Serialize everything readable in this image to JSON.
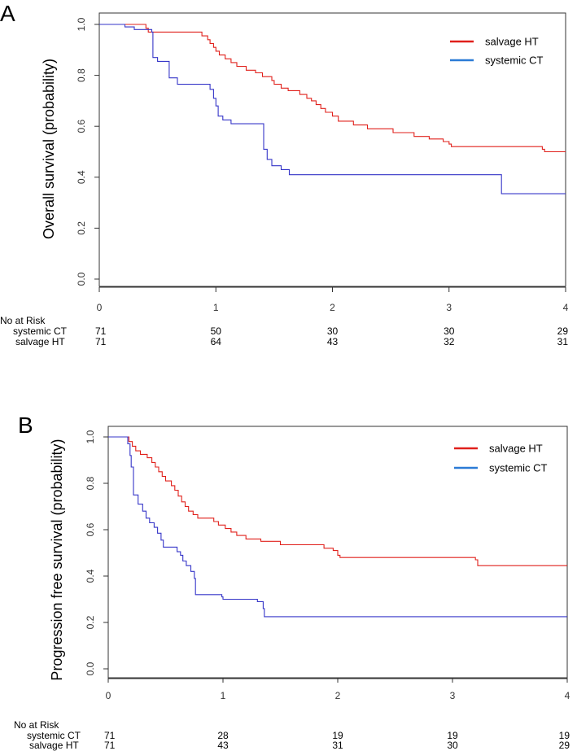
{
  "chart_data": [
    {
      "panel": "A",
      "type": "line",
      "ylabel": "Overall survival (probability)",
      "xlim": [
        0,
        4
      ],
      "ylim": [
        0,
        1
      ],
      "x_ticks": [
        0,
        1,
        2,
        3,
        4
      ],
      "y_ticks": [
        "0.0",
        "0.2",
        "0.4",
        "0.6",
        "0.8",
        "1.0"
      ],
      "legend": [
        {
          "name": "salvage HT",
          "color": "#e0201b"
        },
        {
          "name": "systemic CT",
          "color": "#2b7bd6"
        }
      ],
      "series": [
        {
          "name": "salvage HT",
          "color": "#e0201b",
          "points": [
            [
              0,
              1.0
            ],
            [
              0.38,
              1.0
            ],
            [
              0.4,
              0.985
            ],
            [
              0.42,
              0.97
            ],
            [
              0.86,
              0.97
            ],
            [
              0.88,
              0.955
            ],
            [
              0.93,
              0.94
            ],
            [
              0.95,
              0.925
            ],
            [
              0.98,
              0.91
            ],
            [
              1.0,
              0.895
            ],
            [
              1.03,
              0.88
            ],
            [
              1.08,
              0.865
            ],
            [
              1.13,
              0.85
            ],
            [
              1.18,
              0.835
            ],
            [
              1.26,
              0.82
            ],
            [
              1.34,
              0.81
            ],
            [
              1.4,
              0.795
            ],
            [
              1.48,
              0.78
            ],
            [
              1.5,
              0.765
            ],
            [
              1.56,
              0.75
            ],
            [
              1.62,
              0.74
            ],
            [
              1.72,
              0.725
            ],
            [
              1.78,
              0.71
            ],
            [
              1.82,
              0.7
            ],
            [
              1.86,
              0.685
            ],
            [
              1.9,
              0.67
            ],
            [
              1.94,
              0.655
            ],
            [
              2.0,
              0.64
            ],
            [
              2.05,
              0.62
            ],
            [
              2.18,
              0.605
            ],
            [
              2.3,
              0.59
            ],
            [
              2.52,
              0.575
            ],
            [
              2.7,
              0.56
            ],
            [
              2.83,
              0.55
            ],
            [
              2.95,
              0.54
            ],
            [
              3.0,
              0.53
            ],
            [
              3.02,
              0.52
            ],
            [
              3.8,
              0.51
            ],
            [
              3.82,
              0.5
            ],
            [
              4.0,
              0.5
            ]
          ]
        },
        {
          "name": "systemic CT",
          "color": "#3535c8",
          "points": [
            [
              0,
              1.0
            ],
            [
              0.22,
              0.99
            ],
            [
              0.3,
              0.98
            ],
            [
              0.45,
              0.97
            ],
            [
              0.46,
              0.87
            ],
            [
              0.5,
              0.855
            ],
            [
              0.6,
              0.79
            ],
            [
              0.67,
              0.765
            ],
            [
              0.95,
              0.745
            ],
            [
              0.98,
              0.71
            ],
            [
              1.0,
              0.68
            ],
            [
              1.02,
              0.64
            ],
            [
              1.06,
              0.625
            ],
            [
              1.13,
              0.61
            ],
            [
              1.4,
              0.61
            ],
            [
              1.41,
              0.51
            ],
            [
              1.44,
              0.47
            ],
            [
              1.48,
              0.445
            ],
            [
              1.56,
              0.43
            ],
            [
              1.63,
              0.41
            ],
            [
              3.44,
              0.41
            ],
            [
              3.45,
              0.335
            ],
            [
              4.0,
              0.335
            ]
          ]
        }
      ],
      "risk_table": {
        "title": "No at Risk",
        "rows": [
          {
            "label": "systemic CT",
            "counts": [
              "71",
              "50",
              "30",
              "30",
              "29"
            ]
          },
          {
            "label": "salvage HT",
            "counts": [
              "71",
              "64",
              "43",
              "32",
              "31"
            ]
          }
        ]
      }
    },
    {
      "panel": "B",
      "type": "line",
      "ylabel": "Progression free survival (probability)",
      "xlim": [
        0,
        4
      ],
      "ylim": [
        0,
        1
      ],
      "x_ticks": [
        0,
        1,
        2,
        3,
        4
      ],
      "y_ticks": [
        "0.0",
        "0.2",
        "0.4",
        "0.6",
        "0.8",
        "1.0"
      ],
      "legend": [
        {
          "name": "salvage HT",
          "color": "#e0201b"
        },
        {
          "name": "systemic CT",
          "color": "#2b7bd6"
        }
      ],
      "series": [
        {
          "name": "salvage HT",
          "color": "#e0201b",
          "points": [
            [
              0,
              1.0
            ],
            [
              0.16,
              1.0
            ],
            [
              0.18,
              0.98
            ],
            [
              0.21,
              0.96
            ],
            [
              0.24,
              0.94
            ],
            [
              0.28,
              0.925
            ],
            [
              0.34,
              0.91
            ],
            [
              0.38,
              0.89
            ],
            [
              0.41,
              0.87
            ],
            [
              0.44,
              0.85
            ],
            [
              0.47,
              0.83
            ],
            [
              0.5,
              0.81
            ],
            [
              0.55,
              0.79
            ],
            [
              0.58,
              0.77
            ],
            [
              0.61,
              0.745
            ],
            [
              0.64,
              0.72
            ],
            [
              0.67,
              0.7
            ],
            [
              0.7,
              0.68
            ],
            [
              0.74,
              0.665
            ],
            [
              0.78,
              0.65
            ],
            [
              0.92,
              0.635
            ],
            [
              0.96,
              0.62
            ],
            [
              1.02,
              0.605
            ],
            [
              1.07,
              0.59
            ],
            [
              1.12,
              0.575
            ],
            [
              1.2,
              0.56
            ],
            [
              1.33,
              0.55
            ],
            [
              1.5,
              0.535
            ],
            [
              1.88,
              0.52
            ],
            [
              1.96,
              0.51
            ],
            [
              2.0,
              0.49
            ],
            [
              2.02,
              0.48
            ],
            [
              3.2,
              0.47
            ],
            [
              3.22,
              0.445
            ],
            [
              4.0,
              0.445
            ]
          ]
        },
        {
          "name": "systemic CT",
          "color": "#3535c8",
          "points": [
            [
              0,
              1.0
            ],
            [
              0.15,
              1.0
            ],
            [
              0.17,
              0.97
            ],
            [
              0.19,
              0.92
            ],
            [
              0.2,
              0.87
            ],
            [
              0.22,
              0.75
            ],
            [
              0.26,
              0.71
            ],
            [
              0.3,
              0.68
            ],
            [
              0.33,
              0.65
            ],
            [
              0.36,
              0.63
            ],
            [
              0.4,
              0.61
            ],
            [
              0.43,
              0.585
            ],
            [
              0.46,
              0.555
            ],
            [
              0.48,
              0.525
            ],
            [
              0.6,
              0.505
            ],
            [
              0.63,
              0.49
            ],
            [
              0.65,
              0.465
            ],
            [
              0.68,
              0.445
            ],
            [
              0.72,
              0.42
            ],
            [
              0.75,
              0.39
            ],
            [
              0.76,
              0.32
            ],
            [
              0.99,
              0.31
            ],
            [
              1.0,
              0.3
            ],
            [
              1.3,
              0.29
            ],
            [
              1.35,
              0.26
            ],
            [
              1.36,
              0.225
            ],
            [
              4.0,
              0.225
            ]
          ]
        }
      ],
      "risk_table": {
        "title": "No at Risk",
        "rows": [
          {
            "label": "systemic CT",
            "counts": [
              "71",
              "28",
              "19",
              "19",
              "19"
            ]
          },
          {
            "label": "salvage HT",
            "counts": [
              "71",
              "43",
              "31",
              "30",
              "29"
            ]
          }
        ]
      }
    }
  ]
}
